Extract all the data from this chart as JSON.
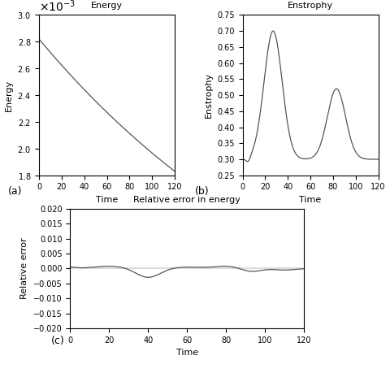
{
  "fig_width": 4.8,
  "fig_height": 4.59,
  "dpi": 100,
  "line_color": "#555555",
  "line_width": 0.9,
  "background_color": "#ffffff",
  "energy": {
    "title": "Energy",
    "xlabel": "Time",
    "ylabel": "Energy",
    "ylim": [
      0.0018,
      0.003
    ],
    "yticks": [
      0.0018,
      0.002,
      0.0022,
      0.0024,
      0.0026,
      0.0028,
      0.003
    ],
    "xlim": [
      0,
      120
    ],
    "xticks": [
      0,
      20,
      40,
      60,
      80,
      100,
      120
    ],
    "label": "(a)"
  },
  "enstrophy": {
    "title": "Enstrophy",
    "xlabel": "Time",
    "ylabel": "Enstrophy",
    "ylim": [
      0.25,
      0.75
    ],
    "yticks": [
      0.25,
      0.3,
      0.35,
      0.4,
      0.45,
      0.5,
      0.55,
      0.6,
      0.65,
      0.7,
      0.75
    ],
    "xlim": [
      0,
      120
    ],
    "xticks": [
      0,
      20,
      40,
      60,
      80,
      100,
      120
    ],
    "label": "(b)"
  },
  "relative_error": {
    "title": "Relative error in energy",
    "xlabel": "Time",
    "ylabel": "Relative error",
    "ylim": [
      -0.02,
      0.02
    ],
    "yticks": [
      -0.02,
      -0.015,
      -0.01,
      -0.005,
      0,
      0.005,
      0.01,
      0.015,
      0.02
    ],
    "xlim": [
      0,
      120
    ],
    "xticks": [
      0,
      20,
      40,
      60,
      80,
      100,
      120
    ],
    "label": "(c)"
  }
}
